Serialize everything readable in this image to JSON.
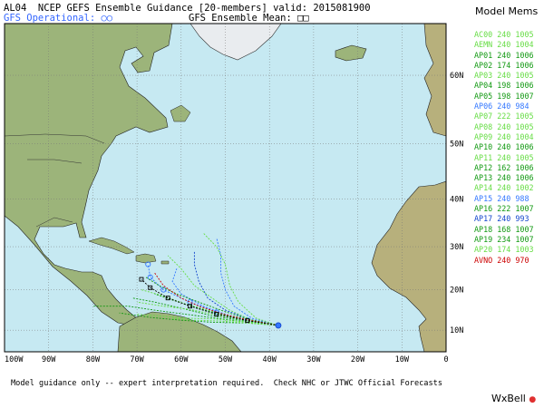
{
  "header": {
    "title": "AL04  NCEP GEFS Ensemble Guidance [20-members] valid: 2015081900",
    "gfs_operational": "GFS Operational: ○○",
    "gfs_mean": "GFS Ensemble Mean: □□"
  },
  "map": {
    "lon_labels": [
      "100W",
      "90W",
      "80W",
      "70W",
      "60W",
      "50W",
      "40W",
      "30W",
      "20W",
      "10W",
      "0"
    ],
    "lat_labels": [
      "10N",
      "20N",
      "30N",
      "40N",
      "50N",
      "60N"
    ],
    "lon_range": [
      -100,
      0
    ],
    "lat_range": [
      4.5,
      66
    ],
    "colors": {
      "ocean": "#c6e9f2",
      "land": "#9cb47a",
      "border": "#333333"
    }
  },
  "legend": {
    "title": "Model Mems",
    "members": [
      {
        "label": "AC00 240 1005",
        "color": "#66dd44"
      },
      {
        "label": "AEMN 240 1004",
        "color": "#66dd44"
      },
      {
        "label": "AP01 240 1006",
        "color": "#119911"
      },
      {
        "label": "AP02 174 1006",
        "color": "#119911"
      },
      {
        "label": "AP03 240 1005",
        "color": "#66dd44"
      },
      {
        "label": "AP04 198 1006",
        "color": "#119911"
      },
      {
        "label": "AP05 198 1007",
        "color": "#119911"
      },
      {
        "label": "AP06 240 984",
        "color": "#3377ff"
      },
      {
        "label": "AP07 222 1005",
        "color": "#66dd44"
      },
      {
        "label": "AP08 240 1005",
        "color": "#66dd44"
      },
      {
        "label": "AP09 240 1004",
        "color": "#66dd44"
      },
      {
        "label": "AP10 240 1006",
        "color": "#119911"
      },
      {
        "label": "AP11 240 1005",
        "color": "#66dd44"
      },
      {
        "label": "AP12 162 1006",
        "color": "#119911"
      },
      {
        "label": "AP13 240 1006",
        "color": "#119911"
      },
      {
        "label": "AP14 240 1002",
        "color": "#66dd44"
      },
      {
        "label": "AP15 240 988",
        "color": "#3377ff"
      },
      {
        "label": "AP16 222 1007",
        "color": "#119911"
      },
      {
        "label": "AP17 240 993",
        "color": "#1144cc"
      },
      {
        "label": "AP18 168 1007",
        "color": "#119911"
      },
      {
        "label": "AP19 234 1007",
        "color": "#119911"
      },
      {
        "label": "AP20 174 1003",
        "color": "#66dd44"
      },
      {
        "label": "AVNO 240 970",
        "color": "#cc0000"
      }
    ]
  },
  "footer": "Model guidance only -- expert interpretation required.  Check NHC or JTWC Official Forecasts",
  "brand": {
    "name": "WxBell",
    "mark": "●"
  }
}
